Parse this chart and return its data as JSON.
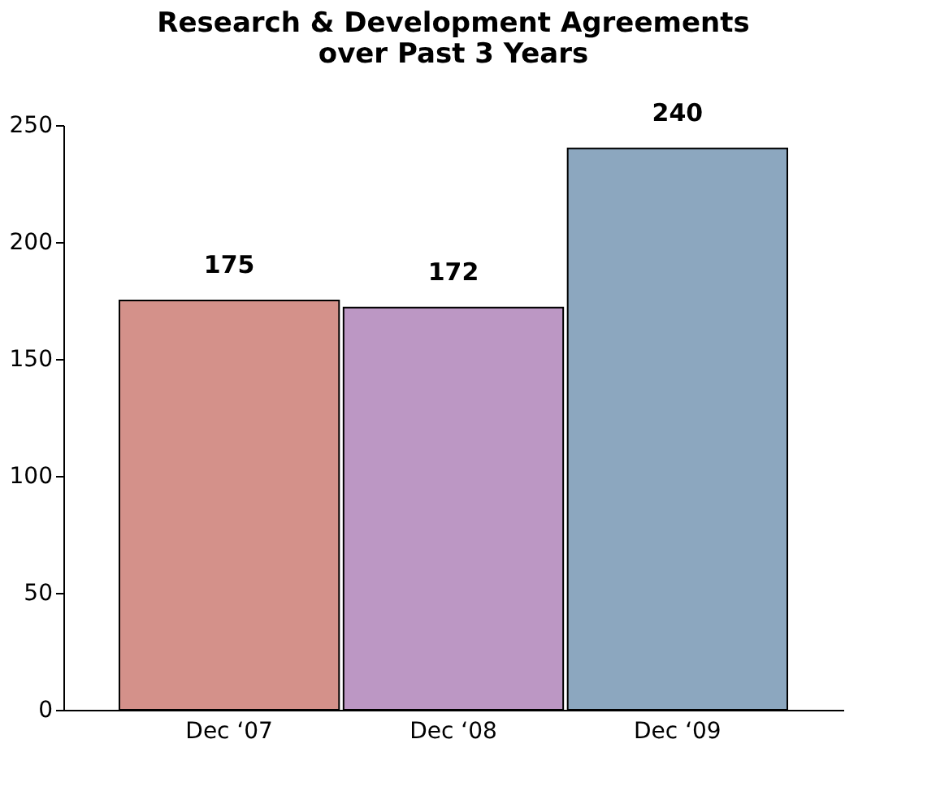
{
  "chart_data": {
    "type": "bar",
    "title": "Research & Development Agreements\nover Past 3 Years",
    "categories": [
      "Dec ‘07",
      "Dec ‘08",
      "Dec ‘09"
    ],
    "values": [
      175,
      172,
      240
    ],
    "colors": [
      "#d4918a",
      "#bc97c4",
      "#8ca7bf"
    ],
    "ylim": [
      0,
      250
    ],
    "yticks": [
      0,
      50,
      100,
      150,
      200,
      250
    ],
    "data_labels": true,
    "grid": false
  }
}
